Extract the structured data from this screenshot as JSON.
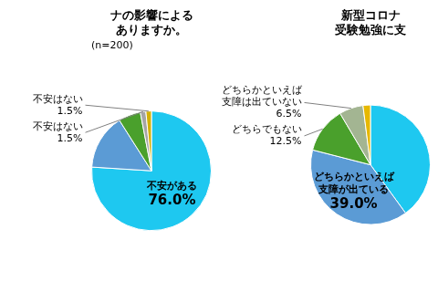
{
  "chart_data": [
    {
      "type": "pie",
      "title": [
        "ナの影響による",
        "ありますか。"
      ],
      "subtitle": "(n=200)",
      "categories": [
        "不安がある",
        null,
        null,
        "不安はない",
        "不安はない"
      ],
      "values": [
        76,
        15,
        6,
        1.5,
        1.5
      ],
      "value_labels": [
        "76.0%",
        null,
        null,
        "1.5%",
        "1.5%"
      ],
      "colors": [
        "#1ec8f0",
        "#5b9bd5",
        "#4aa02c",
        "#a5a5a5",
        "#d4b106"
      ],
      "data_labels": true
    },
    {
      "type": "pie",
      "title": [
        "新型コロナ",
        "受験勉強に支"
      ],
      "categories": [
        null,
        "どちらかといえば支障が出ている",
        "どちらでもない",
        "どちらかといえば支障は出ていない",
        null
      ],
      "values": [
        40,
        39,
        12.5,
        6.5,
        2
      ],
      "value_labels": [
        null,
        "39.0%",
        "12.5%",
        "6.5%",
        null
      ],
      "colors": [
        "#1ec8f0",
        "#5b9bd5",
        "#4aa02c",
        "#a3b592",
        "#e6b800"
      ],
      "data_labels": true
    }
  ]
}
